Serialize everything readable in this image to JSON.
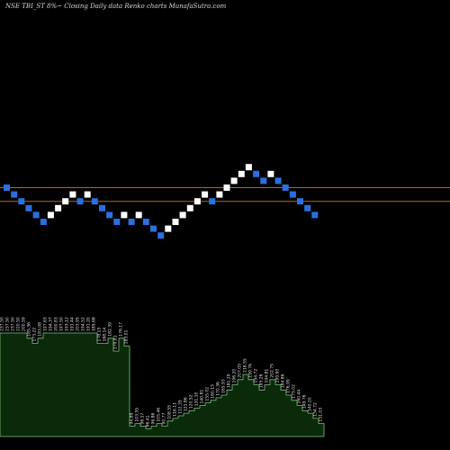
{
  "chart_data": {
    "type": "renko",
    "title": "NSE TBI_ST 8%~  Closing Daily data  Renko  charts MunafaSutra.com",
    "background": "#000000",
    "up_color": "#ffffff",
    "down_color": "#2b6fe0",
    "hline_color": "#b5651d",
    "hlines": [
      {
        "name": "upper-line",
        "value": 0
      },
      {
        "name": "lower-line",
        "value": -2
      }
    ],
    "bricks": [
      {
        "dir": "down",
        "level": 0
      },
      {
        "dir": "down",
        "level": -1
      },
      {
        "dir": "down",
        "level": -2
      },
      {
        "dir": "down",
        "level": -3
      },
      {
        "dir": "down",
        "level": -4
      },
      {
        "dir": "down",
        "level": -5
      },
      {
        "dir": "up",
        "level": -4
      },
      {
        "dir": "up",
        "level": -3
      },
      {
        "dir": "up",
        "level": -2
      },
      {
        "dir": "up",
        "level": -1
      },
      {
        "dir": "down",
        "level": -2
      },
      {
        "dir": "up",
        "level": -1
      },
      {
        "dir": "down",
        "level": -2
      },
      {
        "dir": "down",
        "level": -3
      },
      {
        "dir": "down",
        "level": -4
      },
      {
        "dir": "down",
        "level": -5
      },
      {
        "dir": "up",
        "level": -4
      },
      {
        "dir": "down",
        "level": -5
      },
      {
        "dir": "up",
        "level": -4
      },
      {
        "dir": "down",
        "level": -5
      },
      {
        "dir": "down",
        "level": -6
      },
      {
        "dir": "down",
        "level": -7
      },
      {
        "dir": "up",
        "level": -6
      },
      {
        "dir": "up",
        "level": -5
      },
      {
        "dir": "up",
        "level": -4
      },
      {
        "dir": "up",
        "level": -3
      },
      {
        "dir": "up",
        "level": -2
      },
      {
        "dir": "up",
        "level": -1
      },
      {
        "dir": "down",
        "level": -2
      },
      {
        "dir": "up",
        "level": -1
      },
      {
        "dir": "up",
        "level": 0
      },
      {
        "dir": "up",
        "level": 1
      },
      {
        "dir": "up",
        "level": 2
      },
      {
        "dir": "up",
        "level": 3
      },
      {
        "dir": "down",
        "level": 2
      },
      {
        "dir": "down",
        "level": 1
      },
      {
        "dir": "up",
        "level": 2
      },
      {
        "dir": "down",
        "level": 1
      },
      {
        "dir": "down",
        "level": 0
      },
      {
        "dir": "down",
        "level": -1
      },
      {
        "dir": "down",
        "level": -2
      },
      {
        "dir": "down",
        "level": -3
      },
      {
        "dir": "down",
        "level": -4
      }
    ],
    "columns": [
      {
        "value": 40,
        "labels": [
          "237.50"
        ]
      },
      {
        "value": 40,
        "labels": [
          "237.50"
        ]
      },
      {
        "value": 40,
        "labels": [
          "237.50"
        ]
      },
      {
        "value": 40,
        "labels": [
          "220.50"
        ]
      },
      {
        "value": 40,
        "labels": [
          "200.59"
        ]
      },
      {
        "value": 38,
        "labels": [
          "185.36"
        ]
      },
      {
        "value": 36,
        "labels": [
          "173.22"
        ]
      },
      {
        "value": 38,
        "labels": [
          "183.08"
        ]
      },
      {
        "value": 40,
        "labels": [
          "197.63"
        ]
      },
      {
        "value": 40,
        "labels": [
          "194.37"
        ]
      },
      {
        "value": 40,
        "labels": [
          "200.83"
        ]
      },
      {
        "value": 40,
        "labels": [
          "197.50"
        ]
      },
      {
        "value": 40,
        "labels": [
          "193.12"
        ]
      },
      {
        "value": 40,
        "labels": [
          "191.44"
        ]
      },
      {
        "value": 40,
        "labels": [
          "203.95"
        ]
      },
      {
        "value": 40,
        "labels": [
          "194.52"
        ]
      },
      {
        "value": 40,
        "labels": [
          "191.20"
        ]
      },
      {
        "value": 40,
        "labels": [
          "189.68"
        ]
      },
      {
        "value": 36,
        "labels": [
          "178.15"
        ]
      },
      {
        "value": 36,
        "labels": [
          "168.14"
        ]
      },
      {
        "value": 38,
        "labels": [
          "182.39"
        ]
      },
      {
        "value": 33,
        "labels": [
          "179.81"
        ]
      },
      {
        "value": 38,
        "labels": [
          "176.17"
        ]
      },
      {
        "value": 35,
        "labels": [
          "183.01"
        ]
      },
      {
        "value": 4,
        "labels": [
          "94.88"
        ]
      },
      {
        "value": 5,
        "labels": [
          "103.55"
        ]
      },
      {
        "value": 4,
        "labels": [
          "96.17"
        ]
      },
      {
        "value": 3,
        "labels": [
          "86.41"
        ]
      },
      {
        "value": 4,
        "labels": [
          "96.86"
        ]
      },
      {
        "value": 5,
        "labels": [
          "105.46"
        ]
      },
      {
        "value": 4,
        "labels": [
          "90.77"
        ]
      },
      {
        "value": 6,
        "labels": [
          "108.55"
        ]
      },
      {
        "value": 7,
        "labels": [
          "116.11"
        ]
      },
      {
        "value": 8,
        "labels": [
          "112.35"
        ]
      },
      {
        "value": 9,
        "labels": [
          "121.86"
        ]
      },
      {
        "value": 10,
        "labels": [
          "120.52"
        ]
      },
      {
        "value": 11,
        "labels": [
          "131.10"
        ]
      },
      {
        "value": 12,
        "labels": [
          "140.81"
        ]
      },
      {
        "value": 13,
        "labels": [
          "155.02"
        ]
      },
      {
        "value": 14,
        "labels": [
          "160.15"
        ]
      },
      {
        "value": 15,
        "labels": [
          "170.36"
        ]
      },
      {
        "value": 16,
        "labels": [
          "165.93"
        ]
      },
      {
        "value": 18,
        "labels": [
          "181.29"
        ]
      },
      {
        "value": 20,
        "labels": [
          "196.20"
        ]
      },
      {
        "value": 22,
        "labels": [
          "207.05"
        ]
      },
      {
        "value": 24,
        "labels": [
          "216.55"
        ]
      },
      {
        "value": 22,
        "labels": [
          "199.76"
        ]
      },
      {
        "value": 20,
        "labels": [
          "194.72"
        ]
      },
      {
        "value": 18,
        "labels": [
          "185.26"
        ]
      },
      {
        "value": 20,
        "labels": [
          "194.81"
        ]
      },
      {
        "value": 22,
        "labels": [
          "202.75"
        ]
      },
      {
        "value": 20,
        "labels": [
          "199.90"
        ]
      },
      {
        "value": 18,
        "labels": [
          "184.86"
        ]
      },
      {
        "value": 16,
        "labels": [
          "176.99"
        ]
      },
      {
        "value": 14,
        "labels": [
          "175.02"
        ]
      },
      {
        "value": 12,
        "labels": [
          "160.44"
        ]
      },
      {
        "value": 10,
        "labels": [
          "149.76"
        ]
      },
      {
        "value": 9,
        "labels": [
          "140.20"
        ]
      },
      {
        "value": 7,
        "labels": [
          "134.72"
        ]
      },
      {
        "value": 5,
        "labels": [
          "131.03"
        ]
      }
    ],
    "volume_fill": "#0a2a0a",
    "volume_stroke": "#7fbf7f",
    "label_color": "#e0e0e0"
  }
}
